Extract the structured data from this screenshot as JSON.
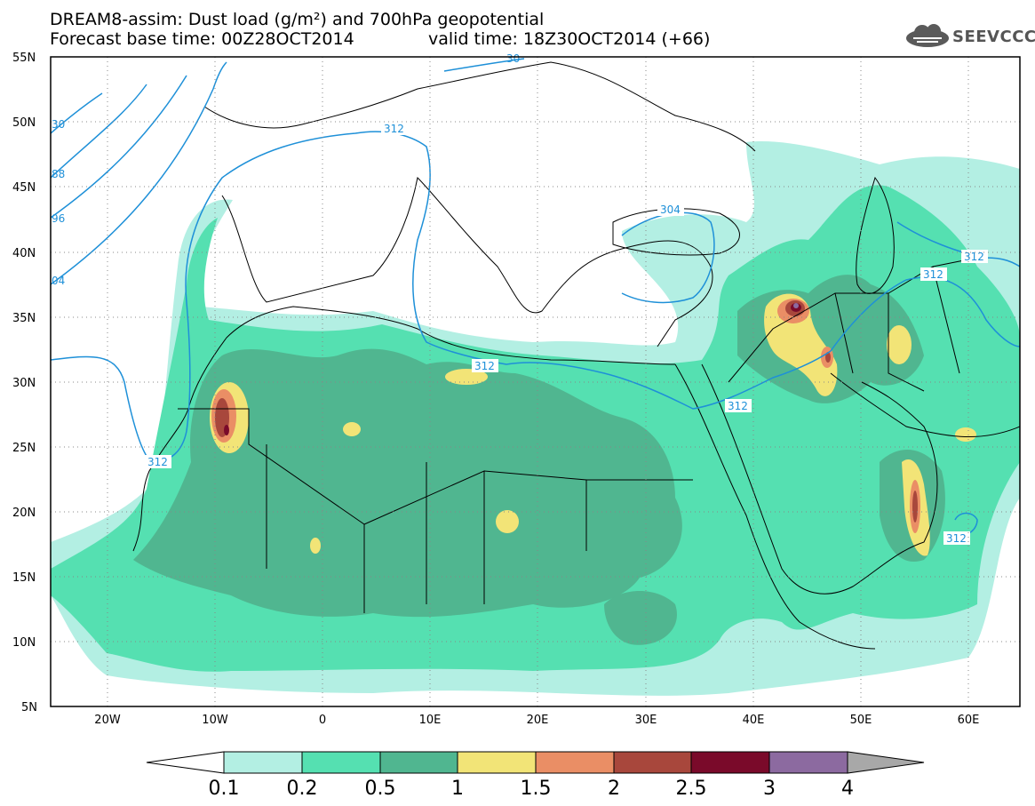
{
  "header": {
    "title": "DREAM8-assim: Dust load (g/m²) and 700hPa geopotential",
    "base_time": "Forecast base time: 00Z28OCT2014",
    "valid_time": "valid time: 18Z30OCT2014 (+66)",
    "logo_text": "SEEVCCC"
  },
  "map": {
    "lat_labels": [
      "55N",
      "50N",
      "45N",
      "40N",
      "35N",
      "30N",
      "25N",
      "20N",
      "15N",
      "10N",
      "5N"
    ],
    "lon_labels": [
      "20W",
      "10W",
      "0",
      "10E",
      "20E",
      "30E",
      "40E",
      "50E",
      "60E"
    ],
    "lon_range": [
      -25,
      65
    ],
    "lat_range": [
      5,
      55
    ],
    "contour_color": "#1e90d8",
    "contour_labels": [
      "312",
      "304",
      "312",
      "312",
      "312",
      "312",
      "312",
      "312",
      "30",
      "88",
      "96",
      "04",
      "30"
    ]
  },
  "colorbar": {
    "levels": [
      "0.1",
      "0.2",
      "0.5",
      "1",
      "1.5",
      "2",
      "2.5",
      "3",
      "4"
    ],
    "colors": [
      "#ffffff",
      "#b3efe3",
      "#55e0b1",
      "#50b690",
      "#f2e477",
      "#ea8e65",
      "#a8473c",
      "#7a0a2a",
      "#8c6aa0",
      "#a8a8a8"
    ]
  }
}
